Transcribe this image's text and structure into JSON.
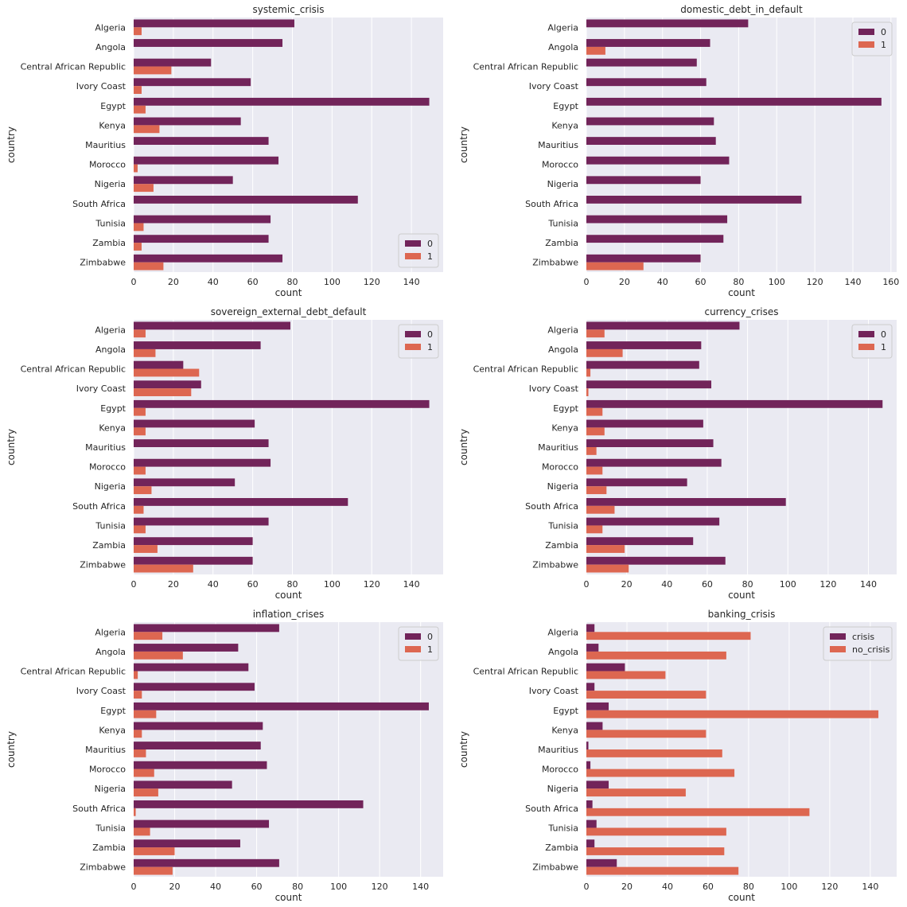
{
  "colors": {
    "series0": "#72245a",
    "series1": "#dd6751",
    "plot_bg": "#eaeaf2",
    "grid": "#ffffff"
  },
  "chart_data": [
    {
      "type": "bar",
      "orientation": "horizontal",
      "title": "systemic_crisis",
      "xlabel": "count",
      "ylabel": "country",
      "categories": [
        "Algeria",
        "Angola",
        "Central African Republic",
        "Ivory Coast",
        "Egypt",
        "Kenya",
        "Mauritius",
        "Morocco",
        "Nigeria",
        "South Africa",
        "Tunisia",
        "Zambia",
        "Zimbabwe"
      ],
      "xlim": [
        0,
        156
      ],
      "xticks": [
        0,
        20,
        40,
        60,
        80,
        100,
        120,
        140
      ],
      "legend_position": "lower-right",
      "series": [
        {
          "name": "0",
          "values": [
            81,
            75,
            39,
            59,
            149,
            54,
            68,
            73,
            50,
            113,
            69,
            68,
            75
          ]
        },
        {
          "name": "1",
          "values": [
            4,
            0,
            19,
            4,
            6,
            13,
            0,
            2,
            10,
            0,
            5,
            4,
            15
          ]
        }
      ]
    },
    {
      "type": "bar",
      "orientation": "horizontal",
      "title": "domestic_debt_in_default",
      "xlabel": "count",
      "ylabel": "country",
      "categories": [
        "Algeria",
        "Angola",
        "Central African Republic",
        "Ivory Coast",
        "Egypt",
        "Kenya",
        "Mauritius",
        "Morocco",
        "Nigeria",
        "South Africa",
        "Tunisia",
        "Zambia",
        "Zimbabwe"
      ],
      "xlim": [
        0,
        163
      ],
      "xticks": [
        0,
        20,
        40,
        60,
        80,
        100,
        120,
        140,
        160
      ],
      "legend_position": "upper-right",
      "series": [
        {
          "name": "0",
          "values": [
            85,
            65,
            58,
            63,
            155,
            67,
            68,
            75,
            60,
            113,
            74,
            72,
            60
          ]
        },
        {
          "name": "1",
          "values": [
            0,
            10,
            0,
            0,
            0,
            0,
            0,
            0,
            0,
            0,
            0,
            0,
            30
          ]
        }
      ]
    },
    {
      "type": "bar",
      "orientation": "horizontal",
      "title": "sovereign_external_debt_default",
      "xlabel": "count",
      "ylabel": "country",
      "categories": [
        "Algeria",
        "Angola",
        "Central African Republic",
        "Ivory Coast",
        "Egypt",
        "Kenya",
        "Mauritius",
        "Morocco",
        "Nigeria",
        "South Africa",
        "Tunisia",
        "Zambia",
        "Zimbabwe"
      ],
      "xlim": [
        0,
        156
      ],
      "xticks": [
        0,
        20,
        40,
        60,
        80,
        100,
        120,
        140
      ],
      "legend_position": "upper-right",
      "series": [
        {
          "name": "0",
          "values": [
            79,
            64,
            25,
            34,
            149,
            61,
            68,
            69,
            51,
            108,
            68,
            60,
            60
          ]
        },
        {
          "name": "1",
          "values": [
            6,
            11,
            33,
            29,
            6,
            6,
            0,
            6,
            9,
            5,
            6,
            12,
            30
          ]
        }
      ]
    },
    {
      "type": "bar",
      "orientation": "horizontal",
      "title": "currency_crises",
      "xlabel": "count",
      "ylabel": "country",
      "categories": [
        "Algeria",
        "Angola",
        "Central African Republic",
        "Ivory Coast",
        "Egypt",
        "Kenya",
        "Mauritius",
        "Morocco",
        "Nigeria",
        "South Africa",
        "Tunisia",
        "Zambia",
        "Zimbabwe"
      ],
      "xlim": [
        0,
        154
      ],
      "xticks": [
        0,
        20,
        40,
        60,
        80,
        100,
        120,
        140
      ],
      "legend_position": "upper-right",
      "series": [
        {
          "name": "0",
          "values": [
            76,
            57,
            56,
            62,
            147,
            58,
            63,
            67,
            50,
            99,
            66,
            53,
            69
          ]
        },
        {
          "name": "1",
          "values": [
            9,
            18,
            2,
            1,
            8,
            9,
            5,
            8,
            10,
            14,
            8,
            19,
            21
          ]
        }
      ]
    },
    {
      "type": "bar",
      "orientation": "horizontal",
      "title": "inflation_crises",
      "xlabel": "count",
      "ylabel": "country",
      "categories": [
        "Algeria",
        "Angola",
        "Central African Republic",
        "Ivory Coast",
        "Egypt",
        "Kenya",
        "Mauritius",
        "Morocco",
        "Nigeria",
        "South Africa",
        "Tunisia",
        "Zambia",
        "Zimbabwe"
      ],
      "xlim": [
        0,
        151
      ],
      "xticks": [
        0,
        20,
        40,
        60,
        80,
        100,
        120,
        140
      ],
      "legend_position": "upper-right",
      "series": [
        {
          "name": "0",
          "values": [
            71,
            51,
            56,
            59,
            144,
            63,
            62,
            65,
            48,
            112,
            66,
            52,
            71
          ]
        },
        {
          "name": "1",
          "values": [
            14,
            24,
            2,
            4,
            11,
            4,
            6,
            10,
            12,
            1,
            8,
            20,
            19
          ]
        }
      ]
    },
    {
      "type": "bar",
      "orientation": "horizontal",
      "title": "banking_crisis",
      "xlabel": "count",
      "ylabel": "country",
      "categories": [
        "Algeria",
        "Angola",
        "Central African Republic",
        "Ivory Coast",
        "Egypt",
        "Kenya",
        "Mauritius",
        "Morocco",
        "Nigeria",
        "South Africa",
        "Tunisia",
        "Zambia",
        "Zimbabwe"
      ],
      "xlim": [
        0,
        153
      ],
      "xticks": [
        0,
        20,
        40,
        60,
        80,
        100,
        120,
        140
      ],
      "legend_position": "upper-right",
      "series": [
        {
          "name": "crisis",
          "values": [
            4,
            6,
            19,
            4,
            11,
            8,
            1,
            2,
            11,
            3,
            5,
            4,
            15
          ]
        },
        {
          "name": "no_crisis",
          "values": [
            81,
            69,
            39,
            59,
            144,
            59,
            67,
            73,
            49,
            110,
            69,
            68,
            75
          ]
        }
      ]
    }
  ]
}
